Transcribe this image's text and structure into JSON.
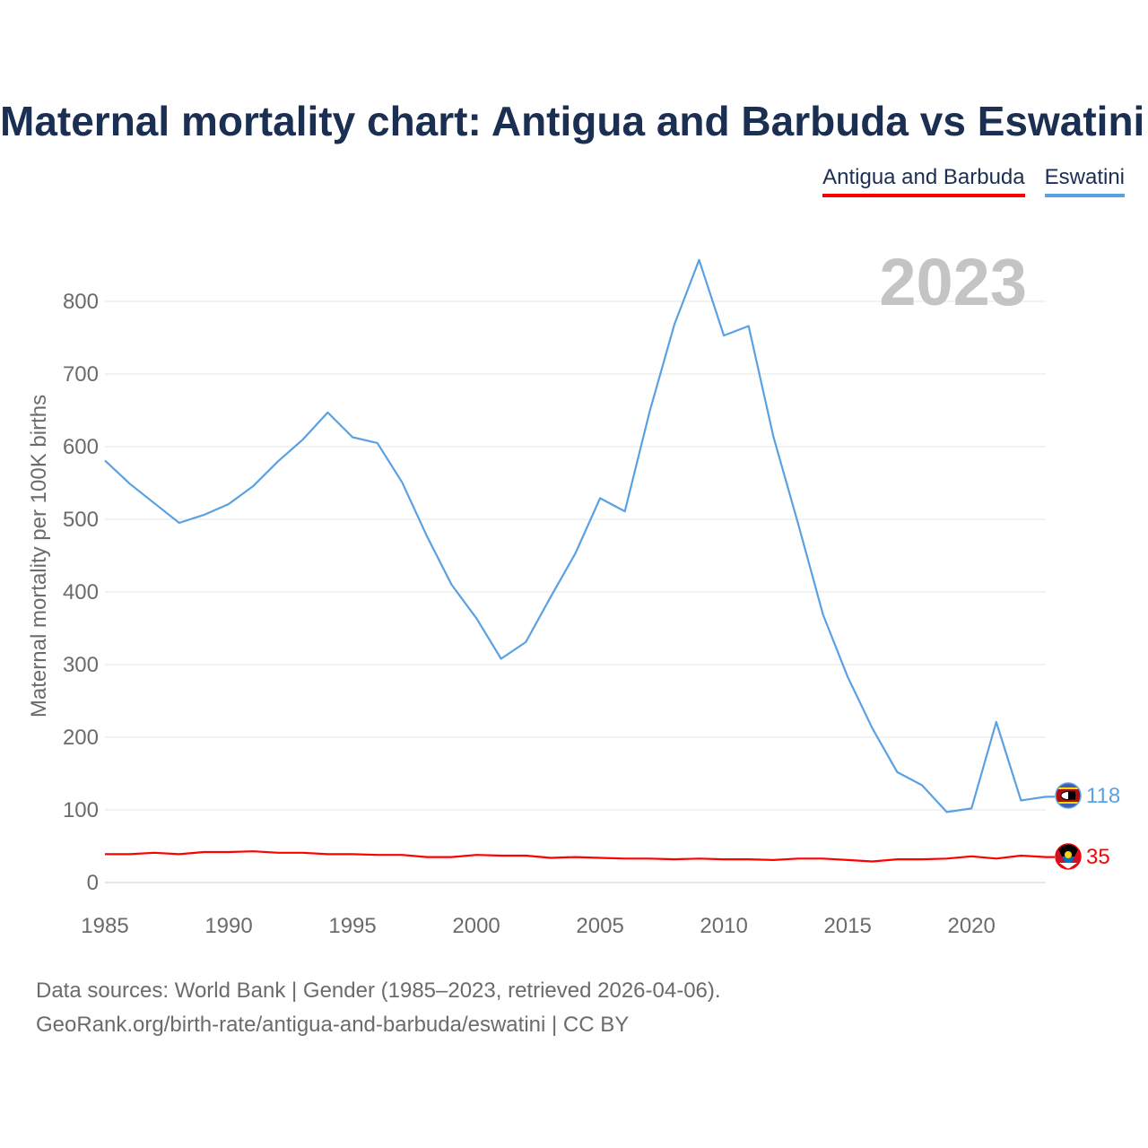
{
  "title": "Maternal mortality chart: Antigua and Barbuda vs Eswatini",
  "legend": [
    {
      "name": "Antigua and Barbuda",
      "color": "#ff0000"
    },
    {
      "name": "Eswatini",
      "color": "#5aa1e3"
    }
  ],
  "chart_data": {
    "type": "line",
    "title": "Maternal mortality chart: Antigua and Barbuda vs Eswatini",
    "xlabel": "",
    "ylabel": "Maternal mortality per 100K births",
    "year_label": "2023",
    "xlim": [
      1985,
      2023
    ],
    "ylim": [
      0,
      850
    ],
    "x_ticks": [
      1985,
      1990,
      1995,
      2000,
      2005,
      2010,
      2015,
      2020
    ],
    "y_ticks": [
      0,
      100,
      200,
      300,
      400,
      500,
      600,
      700,
      800
    ],
    "grid": true,
    "x": [
      1985,
      1986,
      1987,
      1988,
      1989,
      1990,
      1991,
      1992,
      1993,
      1994,
      1995,
      1996,
      1997,
      1998,
      1999,
      2000,
      2001,
      2002,
      2003,
      2004,
      2005,
      2006,
      2007,
      2008,
      2009,
      2010,
      2011,
      2012,
      2013,
      2014,
      2015,
      2016,
      2017,
      2018,
      2019,
      2020,
      2021,
      2022,
      2023
    ],
    "series": [
      {
        "name": "Eswatini",
        "color": "#5aa1e3",
        "end_label": "118",
        "values": [
          581,
          549,
          522,
          495,
          506,
          521,
          546,
          580,
          610,
          647,
          613,
          605,
          551,
          477,
          410,
          364,
          308,
          331,
          393,
          453,
          529,
          511,
          648,
          768,
          857,
          753,
          766,
          614,
          494,
          369,
          283,
          212,
          152,
          134,
          97,
          102,
          221,
          113,
          118
        ]
      },
      {
        "name": "Antigua and Barbuda",
        "color": "#ff0000",
        "end_label": "35",
        "values": [
          39,
          39,
          41,
          39,
          42,
          42,
          43,
          41,
          41,
          39,
          39,
          38,
          38,
          35,
          35,
          38,
          37,
          37,
          34,
          35,
          34,
          33,
          33,
          32,
          33,
          32,
          32,
          31,
          33,
          33,
          31,
          29,
          32,
          32,
          33,
          36,
          33,
          37,
          35
        ]
      }
    ]
  },
  "footer": {
    "line1": "Data sources: World Bank | Gender (1985–2023, retrieved 2026-04-06).",
    "line2": "GeoRank.org/birth-rate/antigua-and-barbuda/eswatini | CC BY"
  }
}
